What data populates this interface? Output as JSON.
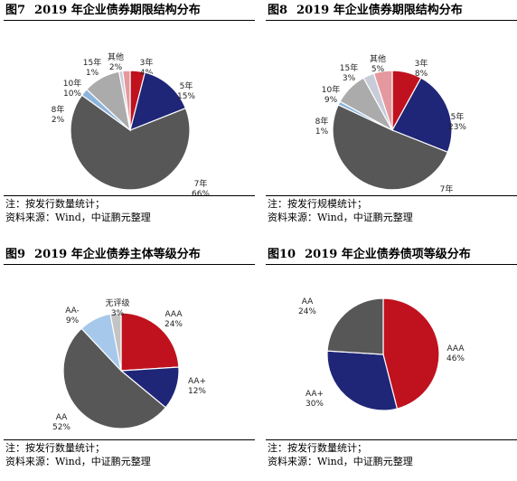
{
  "charts": [
    {
      "fig": "图7",
      "title": "2019 年企业债券期限结构分布",
      "note": "注：按发行数量统计；",
      "source": "资料来源：Wind，中证鹏元整理"
    },
    {
      "fig": "图8",
      "title": "2019 年企业债券期限结构分布",
      "note": "注：按发行规模统计；",
      "source": "资料来源：Wind，中证鹏元整理"
    },
    {
      "fig": "图9",
      "title": "2019 年企业债券主体等级分布",
      "note": "注：按发行数量统计；",
      "source": "资料来源：Wind，中证鹏元整理"
    },
    {
      "fig": "图10",
      "title": "2019 年企业债券债项等级分布",
      "note": "注：按发行数量统计；",
      "source": "资料来源：Wind，中证鹏元整理"
    }
  ],
  "chart_data": [
    {
      "type": "pie",
      "title": "2019 年企业债券期限结构分布",
      "categories": [
        "3年",
        "5年",
        "7年",
        "8年",
        "10年",
        "15年",
        "其他"
      ],
      "values": [
        4,
        15,
        66,
        2,
        10,
        1,
        2
      ],
      "labels": [
        "4%",
        "15%",
        "66%",
        "2%",
        "10%",
        "1%",
        "2%"
      ],
      "colors": [
        "#c0121e",
        "#1f2677",
        "#575757",
        "#8cb4dc",
        "#ababab",
        "#c8ccd8",
        "#e4999e"
      ]
    },
    {
      "type": "pie",
      "title": "2019 年企业债券期限结构分布",
      "categories": [
        "3年",
        "5年",
        "7年",
        "8年",
        "10年",
        "15年",
        "其他"
      ],
      "values": [
        8,
        23,
        51,
        1,
        9,
        3,
        5
      ],
      "labels": [
        "8%",
        "23%",
        "51%",
        "1%",
        "9%",
        "3%",
        "5%"
      ],
      "colors": [
        "#c0121e",
        "#1f2677",
        "#575757",
        "#8cb4dc",
        "#ababab",
        "#c8ccd8",
        "#e4999e"
      ]
    },
    {
      "type": "pie",
      "title": "2019 年企业债券主体等级分布",
      "categories": [
        "AAA",
        "AA+",
        "AA",
        "AA-",
        "无评级"
      ],
      "values": [
        24,
        12,
        52,
        9,
        3
      ],
      "labels": [
        "24%",
        "12%",
        "52%",
        "9%",
        "3%"
      ],
      "colors": [
        "#c0121e",
        "#1f2677",
        "#575757",
        "#a6c8ea",
        "#c4c4c4"
      ]
    },
    {
      "type": "pie",
      "title": "2019 年企业债券债项等级分布",
      "categories": [
        "AAA",
        "AA+",
        "AA"
      ],
      "values": [
        46,
        30,
        24
      ],
      "labels": [
        "46%",
        "30%",
        "24%"
      ],
      "colors": [
        "#c0121e",
        "#1f2677",
        "#575757"
      ]
    }
  ]
}
